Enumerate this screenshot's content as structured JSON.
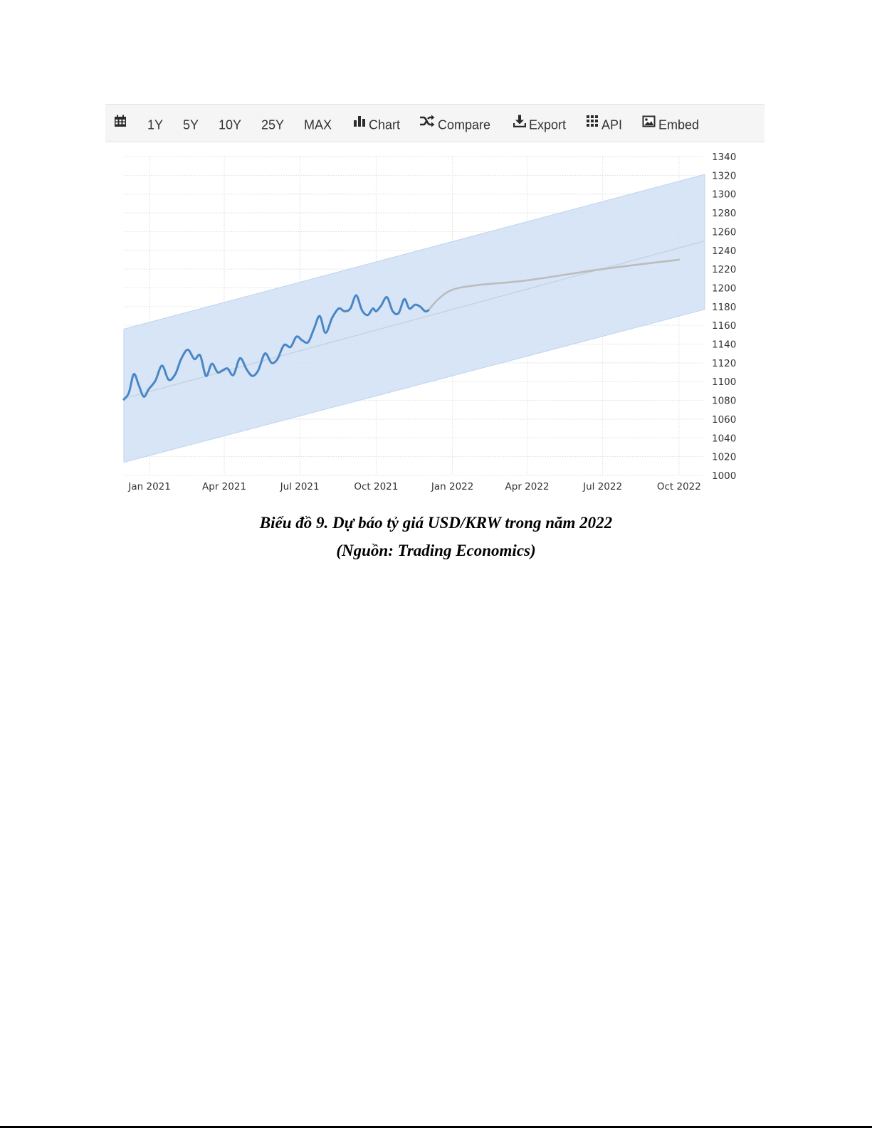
{
  "toolbar": {
    "items": [
      {
        "label": "",
        "icon": "calendar-icon"
      },
      {
        "label": "1Y"
      },
      {
        "label": "5Y"
      },
      {
        "label": "10Y"
      },
      {
        "label": "25Y"
      },
      {
        "label": "MAX"
      },
      {
        "label": "Chart",
        "icon": "bar-chart-icon"
      },
      {
        "label": "Compare",
        "icon": "shuffle-icon"
      },
      {
        "label": "Export",
        "icon": "download-icon"
      },
      {
        "label": "API",
        "icon": "grid-icon"
      },
      {
        "label": "Embed",
        "icon": "image-icon"
      }
    ]
  },
  "caption": {
    "title": "Biểu đồ 9. Dự báo tỷ giá USD/KRW trong năm 2022",
    "source": "(Nguồn: Trading Economics)"
  },
  "colors": {
    "actual_line": "#4a86c5",
    "forecast_line": "#bcbcbc",
    "band_fill": "#d3e3f6",
    "band_edge": "#b7d0ef",
    "trend_line": "#c4cfdc",
    "grid": "#dcdcdc"
  },
  "chart_data": {
    "type": "line",
    "title": "",
    "xlabel": "",
    "ylabel": "",
    "y_axis_position": "right",
    "grid": true,
    "legend": "none",
    "ylim": [
      1000,
      1340
    ],
    "yticks": [
      1000,
      1020,
      1040,
      1060,
      1080,
      1100,
      1120,
      1140,
      1160,
      1180,
      1200,
      1220,
      1240,
      1260,
      1280,
      1300,
      1320,
      1340
    ],
    "xlim": [
      "2020-12-01",
      "2022-11-01"
    ],
    "xticks": [
      {
        "label": "Jan 2021",
        "date": "2021-01-01"
      },
      {
        "label": "Apr 2021",
        "date": "2021-04-01"
      },
      {
        "label": "Jul 2021",
        "date": "2021-07-01"
      },
      {
        "label": "Oct 2021",
        "date": "2021-10-01"
      },
      {
        "label": "Jan 2022",
        "date": "2022-01-01"
      },
      {
        "label": "Apr 2022",
        "date": "2022-04-01"
      },
      {
        "label": "Jul 2022",
        "date": "2022-07-01"
      },
      {
        "label": "Oct 2022",
        "date": "2022-10-01"
      }
    ],
    "series": [
      {
        "type": "line",
        "role": "actual",
        "x": [
          "2020-12-01",
          "2020-12-07",
          "2020-12-13",
          "2020-12-19",
          "2020-12-25",
          "2020-12-31",
          "2021-01-08",
          "2021-01-16",
          "2021-01-24",
          "2021-02-01",
          "2021-02-08",
          "2021-02-16",
          "2021-02-24",
          "2021-03-03",
          "2021-03-10",
          "2021-03-17",
          "2021-03-24",
          "2021-03-30",
          "2021-04-05",
          "2021-04-12",
          "2021-04-20",
          "2021-04-28",
          "2021-05-05",
          "2021-05-12",
          "2021-05-20",
          "2021-05-28",
          "2021-06-04",
          "2021-06-12",
          "2021-06-20",
          "2021-06-27",
          "2021-07-04",
          "2021-07-11",
          "2021-07-18",
          "2021-07-25",
          "2021-08-01",
          "2021-08-09",
          "2021-08-17",
          "2021-08-24",
          "2021-08-31",
          "2021-09-07",
          "2021-09-14",
          "2021-09-21",
          "2021-09-27",
          "2021-10-01",
          "2021-10-07",
          "2021-10-14",
          "2021-10-21",
          "2021-10-28",
          "2021-11-04",
          "2021-11-10",
          "2021-11-17",
          "2021-11-23",
          "2021-11-29",
          "2021-12-03"
        ],
        "y": [
          1081,
          1088,
          1108,
          1096,
          1084,
          1092,
          1101,
          1117,
          1102,
          1108,
          1124,
          1134,
          1124,
          1128,
          1106,
          1119,
          1110,
          1112,
          1114,
          1107,
          1125,
          1113,
          1106,
          1112,
          1130,
          1120,
          1124,
          1139,
          1137,
          1148,
          1144,
          1142,
          1156,
          1170,
          1152,
          1168,
          1178,
          1175,
          1178,
          1192,
          1176,
          1171,
          1178,
          1175,
          1181,
          1190,
          1175,
          1173,
          1188,
          1178,
          1182,
          1180,
          1175,
          1176
        ]
      },
      {
        "type": "line",
        "role": "forecast",
        "x": [
          "2021-12-03",
          "2021-12-15",
          "2022-01-01",
          "2022-02-01",
          "2022-04-01",
          "2022-07-01",
          "2022-10-01"
        ],
        "y": [
          1176,
          1188,
          1198,
          1203,
          1208,
          1220,
          1230
        ]
      },
      {
        "type": "line",
        "role": "trend",
        "x": [
          "2020-12-01",
          "2022-11-01"
        ],
        "y": [
          1082,
          1250
        ]
      },
      {
        "type": "area",
        "role": "band-upper",
        "x": [
          "2020-12-01",
          "2022-11-01"
        ],
        "y": [
          1156,
          1321
        ]
      },
      {
        "type": "area",
        "role": "band-lower",
        "x": [
          "2020-12-01",
          "2022-11-01"
        ],
        "y": [
          1014,
          1177
        ]
      }
    ]
  }
}
